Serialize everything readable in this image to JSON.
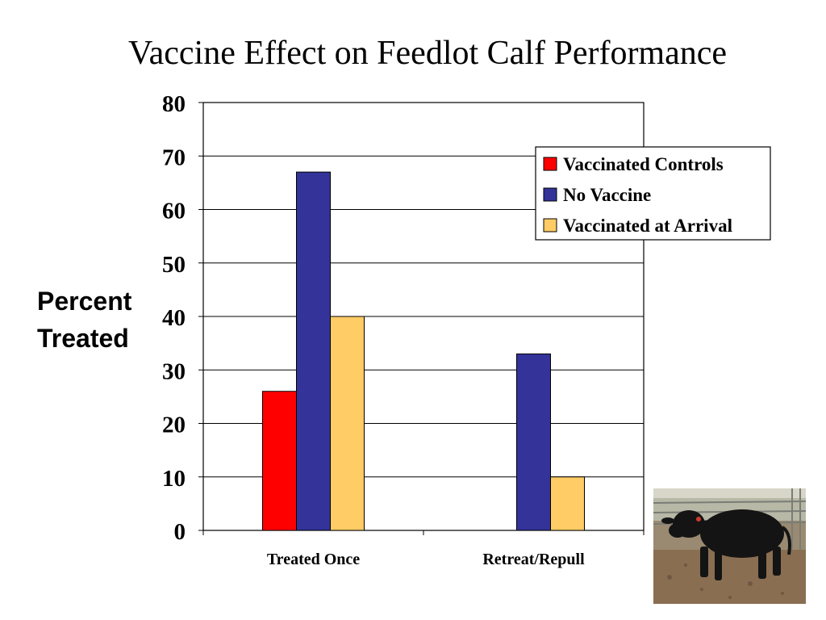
{
  "title": "Vaccine Effect on Feedlot Calf Performance",
  "ylabel_lines": [
    "Percent",
    "Treated"
  ],
  "colors": {
    "series": [
      "#ff0000",
      "#333399",
      "#ffcc66"
    ],
    "gridline": "#000000"
  },
  "photo": {
    "icon": "black-calf-photo"
  },
  "chart_data": {
    "type": "bar",
    "title": "Vaccine Effect on Feedlot Calf Performance",
    "ylabel": "Percent Treated",
    "xlabel": "",
    "categories": [
      "Treated Once",
      "Retreat/Repull"
    ],
    "series": [
      {
        "name": "Vaccinated Controls",
        "values": [
          26,
          null
        ]
      },
      {
        "name": "No Vaccine",
        "values": [
          67,
          33
        ]
      },
      {
        "name": "Vaccinated at Arrival",
        "values": [
          40,
          10
        ]
      }
    ],
    "ylim": [
      0,
      80
    ],
    "yticks": [
      "0",
      "10",
      "20",
      "30",
      "40",
      "50",
      "60",
      "70",
      "80"
    ],
    "grid": true,
    "legend_position": "top-right"
  }
}
